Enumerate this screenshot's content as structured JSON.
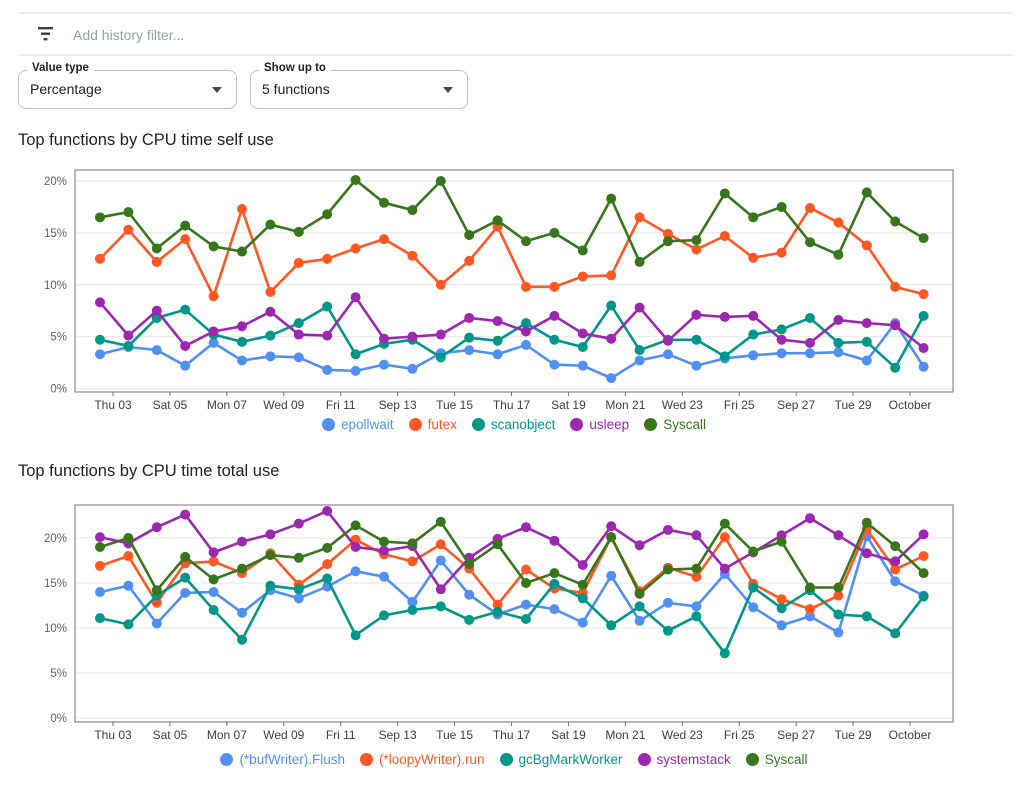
{
  "filter_bar": {
    "placeholder": "Add history filter...",
    "icon": "filter-list-icon"
  },
  "controls": {
    "value_type": {
      "label": "Value type",
      "value": "Percentage"
    },
    "show_up_to": {
      "label": "Show up to",
      "value": "5 functions"
    }
  },
  "colors": {
    "blue": "#518FF5",
    "orange": "#FF5722",
    "teal": "#009688",
    "purple": "#9C27B0",
    "green": "#38761D",
    "axis_border": "#6F7377",
    "gridline": "#EAEAEA",
    "y_tick_label": "#5F6368",
    "x_tick_label": "#3C4043"
  },
  "chart_data": [
    {
      "type": "line",
      "title": "Top functions by CPU time self use",
      "xlabel": "",
      "ylabel": "",
      "ylim": [
        0,
        20
      ],
      "grid": true,
      "legend_position": "bottom",
      "y_ticks": [
        "0%",
        "5%",
        "10%",
        "15%",
        "20%"
      ],
      "x_ticks": [
        "Thu 03",
        "Sat 05",
        "Mon 07",
        "Wed 09",
        "Fri 11",
        "Sep 13",
        "Tue 15",
        "Thu 17",
        "Sat 19",
        "Mon 21",
        "Wed 23",
        "Fri 25",
        "Sep 27",
        "Tue 29",
        "October"
      ],
      "series": [
        {
          "name": "epollwait",
          "color": "#518FF5",
          "values": [
            3.3,
            4.0,
            3.7,
            2.2,
            4.4,
            2.7,
            3.1,
            3.0,
            1.8,
            1.7,
            2.3,
            1.9,
            3.4,
            3.7,
            3.3,
            4.2,
            2.3,
            2.2,
            1.0,
            2.7,
            3.3,
            2.2,
            2.9,
            3.2,
            3.4,
            3.4,
            3.5,
            2.7,
            6.3,
            2.1
          ]
        },
        {
          "name": "futex",
          "color": "#FF5722",
          "values": [
            12.5,
            15.3,
            12.2,
            14.4,
            8.9,
            17.3,
            9.3,
            12.1,
            12.5,
            13.5,
            14.4,
            12.8,
            10.0,
            12.3,
            15.6,
            9.8,
            9.8,
            10.8,
            10.9,
            16.5,
            14.9,
            13.4,
            14.7,
            12.6,
            13.1,
            17.4,
            16.0,
            13.8,
            9.8,
            9.1
          ]
        },
        {
          "name": "scanobject",
          "color": "#009688",
          "values": [
            4.7,
            4.1,
            6.8,
            7.6,
            5.2,
            4.5,
            5.1,
            6.3,
            7.9,
            3.3,
            4.3,
            4.7,
            3.0,
            4.9,
            4.6,
            6.3,
            4.7,
            4.0,
            8.0,
            3.7,
            4.7,
            4.7,
            3.1,
            5.2,
            5.7,
            6.8,
            4.4,
            4.5,
            2.0,
            7.0
          ]
        },
        {
          "name": "usleep",
          "color": "#9C27B0",
          "values": [
            8.3,
            5.1,
            7.5,
            4.1,
            5.5,
            6.0,
            7.4,
            5.2,
            5.1,
            8.8,
            4.8,
            5.0,
            5.2,
            6.8,
            6.5,
            5.5,
            7.0,
            5.3,
            4.8,
            7.8,
            4.6,
            7.1,
            6.9,
            7.0,
            4.7,
            4.4,
            6.6,
            6.3,
            6.1,
            3.9
          ]
        },
        {
          "name": "Syscall",
          "color": "#38761D",
          "values": [
            16.5,
            17.0,
            13.5,
            15.7,
            13.7,
            13.2,
            15.8,
            15.1,
            16.8,
            20.1,
            17.9,
            17.2,
            20.0,
            14.8,
            16.2,
            14.2,
            15.0,
            13.3,
            18.3,
            12.2,
            14.2,
            14.3,
            18.8,
            16.5,
            17.5,
            14.1,
            12.9,
            18.9,
            16.1,
            14.5
          ]
        }
      ]
    },
    {
      "type": "line",
      "title": "Top functions by CPU time total use",
      "xlabel": "",
      "ylabel": "",
      "ylim": [
        0,
        20
      ],
      "grid": true,
      "legend_position": "bottom",
      "y_ticks": [
        "0%",
        "5%",
        "10%",
        "15%",
        "20%"
      ],
      "x_ticks": [
        "Thu 03",
        "Sat 05",
        "Mon 07",
        "Wed 09",
        "Fri 11",
        "Sep 13",
        "Tue 15",
        "Thu 17",
        "Sat 19",
        "Mon 21",
        "Wed 23",
        "Fri 25",
        "Sep 27",
        "Tue 29",
        "October"
      ],
      "series": [
        {
          "name": "(*bufWriter).Flush",
          "color": "#518FF5",
          "values": [
            14.0,
            14.7,
            10.5,
            13.9,
            14.0,
            11.7,
            14.2,
            13.3,
            14.6,
            16.3,
            15.7,
            12.9,
            17.5,
            13.7,
            11.5,
            12.6,
            12.1,
            10.6,
            15.8,
            10.8,
            12.8,
            12.4,
            16.0,
            12.3,
            10.3,
            11.3,
            9.5,
            20.2,
            15.2,
            13.6
          ]
        },
        {
          "name": "(*loopyWriter).run",
          "color": "#FF5722",
          "values": [
            16.9,
            18.0,
            12.8,
            17.2,
            17.4,
            16.1,
            18.3,
            14.8,
            17.1,
            19.8,
            18.2,
            17.4,
            19.3,
            16.6,
            12.6,
            16.5,
            14.4,
            13.9,
            20.1,
            14.1,
            16.7,
            15.7,
            20.1,
            14.9,
            13.2,
            12.1,
            13.6,
            21.0,
            16.5,
            18.0
          ]
        },
        {
          "name": "gcBgMarkWorker",
          "color": "#009688",
          "values": [
            11.1,
            10.4,
            13.6,
            15.6,
            12.0,
            8.7,
            14.7,
            14.3,
            15.5,
            9.2,
            11.4,
            12.0,
            12.4,
            10.9,
            11.8,
            11.0,
            14.9,
            13.3,
            10.3,
            12.4,
            9.7,
            11.3,
            7.2,
            14.5,
            12.2,
            14.2,
            11.5,
            11.3,
            9.4,
            13.5
          ]
        },
        {
          "name": "systemstack",
          "color": "#9C27B0",
          "values": [
            20.1,
            19.4,
            21.2,
            22.6,
            18.4,
            19.6,
            20.4,
            21.6,
            23.0,
            19.0,
            18.6,
            19.1,
            14.3,
            17.8,
            19.9,
            21.2,
            19.7,
            17.0,
            21.3,
            19.2,
            20.9,
            20.3,
            16.6,
            18.4,
            20.3,
            22.2,
            20.3,
            18.3,
            17.4,
            20.4
          ]
        },
        {
          "name": "Syscall",
          "color": "#38761D",
          "values": [
            19.0,
            20.0,
            14.2,
            17.9,
            15.4,
            16.6,
            18.1,
            17.8,
            18.9,
            21.4,
            19.6,
            19.4,
            21.8,
            17.1,
            19.3,
            15.0,
            16.1,
            14.8,
            20.1,
            13.8,
            16.5,
            16.6,
            21.6,
            18.5,
            19.6,
            14.5,
            14.5,
            21.7,
            19.1,
            16.1
          ]
        }
      ]
    }
  ]
}
